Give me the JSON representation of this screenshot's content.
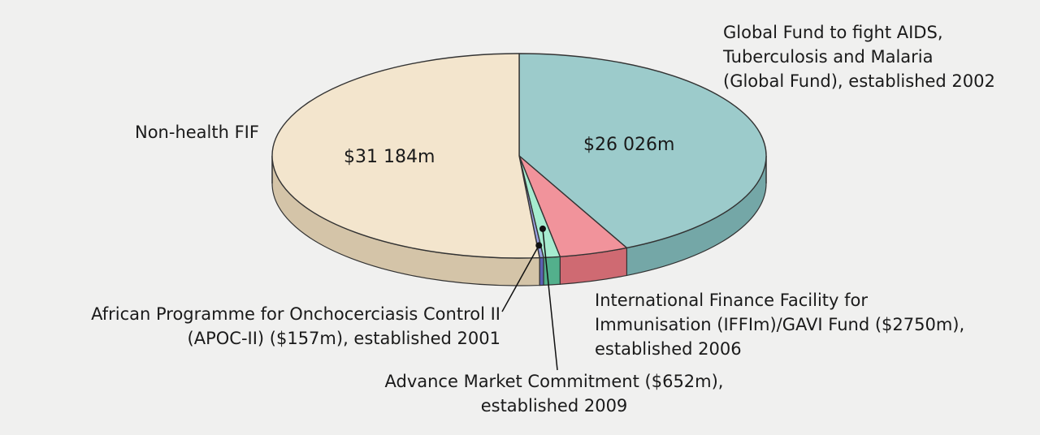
{
  "chart_data": {
    "type": "pie",
    "title": "",
    "slices": [
      {
        "label": "Global Fund to fight AIDS, Tuberculosis and Malaria (Global Fund), established 2002",
        "value": 26026,
        "value_label": "$26 026m",
        "color": "#9ccbcb",
        "side_color": "#74a7a7"
      },
      {
        "label": "International Finance Facility for Immunisation (IFFIm)/GAVI Fund ($2750m), established 2006",
        "value": 2750,
        "value_label": "",
        "color": "#f1939b",
        "side_color": "#cf6a72"
      },
      {
        "label": "Advance Market Commitment ($652m), established 2009",
        "value": 652,
        "value_label": "",
        "color": "#a6ecd0",
        "side_color": "#53b08c"
      },
      {
        "label": "African Programme for Onchocerciasis Control II (APOC-II) ($157m), established 2001",
        "value": 157,
        "value_label": "",
        "color": "#9aa0e2",
        "side_color": "#5a60b2"
      },
      {
        "label": "Non-health FIF",
        "value": 31184,
        "value_label": "$31 184m",
        "color": "#f3e5cd",
        "side_color": "#d4c4a8"
      }
    ]
  },
  "labels": {
    "global_fund": [
      "Global Fund to fight AIDS,",
      "Tuberculosis and Malaria",
      "(Global Fund), established 2002"
    ],
    "non_health": "Non-health FIF",
    "iffim": [
      "International Finance Facility for",
      "Immunisation (IFFIm)/GAVI Fund ($2750m),",
      "established 2006"
    ],
    "amc": [
      "Advance Market Commitment ($652m),",
      "established 2009"
    ],
    "apoc": [
      "African Programme for Onchocerciasis Control II",
      "(APOC-II) ($157m), established 2001"
    ],
    "value_global_fund": "$26 026m",
    "value_non_health": "$31 184m"
  }
}
